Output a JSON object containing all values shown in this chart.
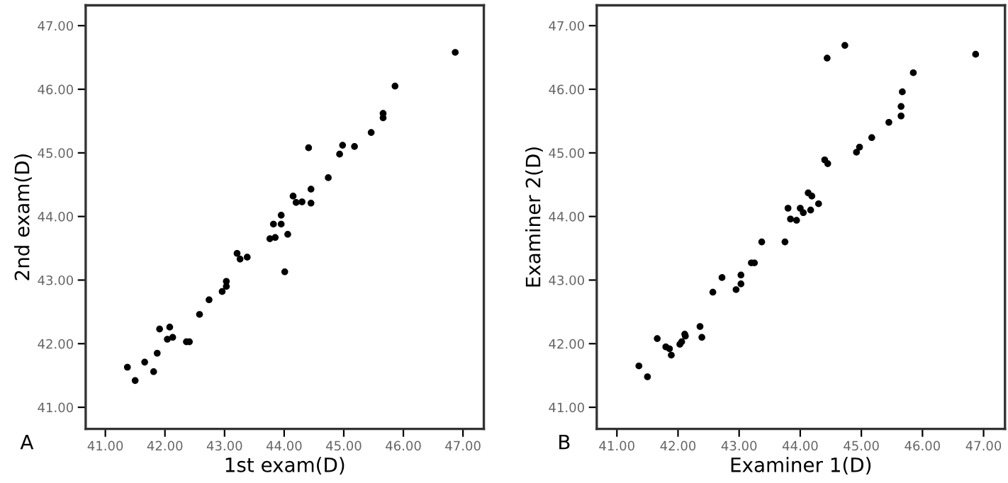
{
  "chart_data": [
    {
      "type": "scatter",
      "xlabel": "1st exam(D)",
      "ylabel": "2nd exam(D)",
      "annotations": [
        "A"
      ],
      "marker": "circle",
      "grid": false,
      "legend": false,
      "xlim": [
        40.67,
        47.35
      ],
      "ylim": [
        40.66,
        47.32
      ],
      "xticks": [
        {
          "value": 41,
          "label": "41.00"
        },
        {
          "value": 42,
          "label": "42.00"
        },
        {
          "value": 43,
          "label": "43.00"
        },
        {
          "value": 44,
          "label": "44.00"
        },
        {
          "value": 45,
          "label": "45.00"
        },
        {
          "value": 46,
          "label": "46.00"
        },
        {
          "value": 47,
          "label": "47.00"
        }
      ],
      "yticks": [
        {
          "value": 41,
          "label": "41.00"
        },
        {
          "value": 42,
          "label": "42.00"
        },
        {
          "value": 43,
          "label": "43.00"
        },
        {
          "value": 44,
          "label": "44.00"
        },
        {
          "value": 45,
          "label": "45.00"
        },
        {
          "value": 46,
          "label": "46.00"
        },
        {
          "value": 47,
          "label": "47.00"
        }
      ],
      "series": [
        {
          "color": "#000000",
          "x": [
            46.87,
            45.86,
            45.66,
            45.66,
            45.46,
            45.18,
            44.98,
            44.93,
            44.41,
            44.74,
            44.45,
            44.45,
            44.15,
            44.2,
            44.3,
            43.95,
            43.82,
            43.95,
            44.06,
            43.76,
            43.85,
            44.01,
            43.21,
            43.26,
            43.38,
            43.03,
            43.03,
            42.96,
            42.74,
            42.58,
            42.36,
            42.41,
            42.04,
            42.13,
            42.08,
            41.91,
            41.87,
            41.81,
            41.66,
            41.37,
            41.5
          ],
          "values": [
            46.58,
            46.05,
            45.62,
            45.55,
            45.32,
            45.1,
            45.12,
            44.98,
            45.08,
            44.61,
            44.43,
            44.21,
            44.32,
            44.22,
            44.23,
            44.02,
            43.88,
            43.88,
            43.72,
            43.65,
            43.67,
            43.13,
            43.42,
            43.33,
            43.36,
            42.98,
            42.9,
            42.82,
            42.69,
            42.46,
            42.03,
            42.03,
            42.07,
            42.1,
            42.26,
            42.23,
            41.85,
            41.56,
            41.71,
            41.63,
            41.42
          ]
        }
      ]
    },
    {
      "type": "scatter",
      "xlabel": "Examiner 1(D)",
      "ylabel": "Examiner 2(D)",
      "annotations": [
        "B"
      ],
      "marker": "circle",
      "grid": false,
      "legend": false,
      "xlim": [
        40.67,
        47.35
      ],
      "ylim": [
        40.66,
        47.32
      ],
      "xticks": [
        {
          "value": 41,
          "label": "41.00"
        },
        {
          "value": 42,
          "label": "42.00"
        },
        {
          "value": 43,
          "label": "43.00"
        },
        {
          "value": 44,
          "label": "44.00"
        },
        {
          "value": 45,
          "label": "45.00"
        },
        {
          "value": 46,
          "label": "46.00"
        },
        {
          "value": 47,
          "label": "47.00"
        }
      ],
      "yticks": [
        {
          "value": 41,
          "label": "41.00"
        },
        {
          "value": 42,
          "label": "42.00"
        },
        {
          "value": 43,
          "label": "43.00"
        },
        {
          "value": 44,
          "label": "44.00"
        },
        {
          "value": 45,
          "label": "45.00"
        },
        {
          "value": 46,
          "label": "46.00"
        },
        {
          "value": 47,
          "label": "47.00"
        }
      ],
      "series": [
        {
          "color": "#000000",
          "x": [
            46.87,
            44.73,
            44.44,
            45.85,
            45.67,
            45.65,
            45.65,
            45.45,
            45.17,
            44.97,
            44.92,
            44.4,
            44.45,
            44.3,
            44.13,
            44.19,
            44.0,
            44.05,
            44.17,
            43.8,
            43.84,
            43.94,
            43.75,
            43.37,
            43.2,
            43.25,
            43.03,
            43.03,
            42.95,
            42.72,
            42.57,
            42.36,
            42.39,
            42.11,
            42.12,
            42.06,
            42.03,
            41.66,
            41.8,
            41.86,
            41.89,
            41.36,
            41.5
          ],
          "values": [
            46.55,
            46.69,
            46.49,
            46.26,
            45.96,
            45.73,
            45.58,
            45.48,
            45.24,
            45.09,
            45.01,
            44.89,
            44.83,
            44.2,
            44.37,
            44.32,
            44.13,
            44.06,
            44.1,
            44.13,
            43.96,
            43.94,
            43.6,
            43.6,
            43.27,
            43.27,
            43.08,
            42.94,
            42.85,
            43.04,
            42.81,
            42.27,
            42.1,
            42.15,
            42.12,
            42.03,
            41.99,
            42.08,
            41.95,
            41.92,
            41.82,
            41.65,
            41.48
          ]
        }
      ]
    }
  ]
}
